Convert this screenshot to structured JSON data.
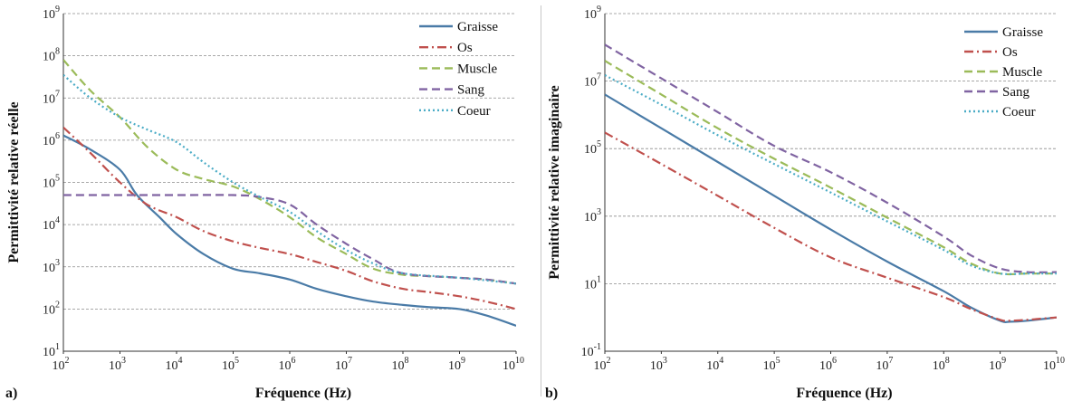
{
  "chart_data": [
    {
      "type": "line",
      "panel_label": "a)",
      "xlabel": "Fréquence (Hz)",
      "ylabel": "Permittivité relative réelle",
      "xscale": "log",
      "yscale": "log",
      "xlim": [
        100,
        10000000000
      ],
      "ylim": [
        10,
        1000000000
      ],
      "grid": "horizontal dashed",
      "legend_position": "top-right",
      "x_ticks": [
        {
          "base": "10",
          "exp": "2"
        },
        {
          "base": "10",
          "exp": "3"
        },
        {
          "base": "10",
          "exp": "4"
        },
        {
          "base": "10",
          "exp": "5"
        },
        {
          "base": "10",
          "exp": "6"
        },
        {
          "base": "10",
          "exp": "7"
        },
        {
          "base": "10",
          "exp": "8"
        },
        {
          "base": "10",
          "exp": "9"
        },
        {
          "base": "10",
          "exp": "10"
        }
      ],
      "y_ticks": [
        {
          "base": "10",
          "exp": "1"
        },
        {
          "base": "10",
          "exp": "2"
        },
        {
          "base": "10",
          "exp": "3"
        },
        {
          "base": "10",
          "exp": "4"
        },
        {
          "base": "10",
          "exp": "5"
        },
        {
          "base": "10",
          "exp": "6"
        },
        {
          "base": "10",
          "exp": "7"
        },
        {
          "base": "10",
          "exp": "8"
        },
        {
          "base": "10",
          "exp": "9"
        }
      ],
      "series": [
        {
          "name": "Graisse",
          "color": "#4a7ba7",
          "dash": "solid",
          "x": [
            100,
            300,
            1000,
            2000,
            5000,
            10000,
            30000,
            100000,
            300000,
            1000000,
            3000000,
            10000000,
            30000000,
            100000000,
            300000000,
            1000000000,
            3000000000,
            10000000000
          ],
          "y": [
            1300000,
            600000,
            200000,
            50000,
            15000,
            6000,
            2000,
            900,
            700,
            500,
            300,
            200,
            150,
            125,
            110,
            100,
            70,
            40
          ]
        },
        {
          "name": "Os",
          "color": "#c0504d",
          "dash": "dashdot",
          "x": [
            100,
            300,
            1000,
            3000,
            10000,
            30000,
            100000,
            300000,
            1000000,
            3000000,
            10000000,
            30000000,
            100000000,
            300000000,
            1000000000,
            3000000000,
            10000000000
          ],
          "y": [
            2000000,
            500000,
            100000,
            30000,
            15000,
            7000,
            4000,
            2800,
            2000,
            1300,
            800,
            450,
            300,
            250,
            200,
            150,
            100
          ]
        },
        {
          "name": "Muscle",
          "color": "#9bbb59",
          "dash": "dash",
          "x": [
            100,
            300,
            1000,
            3000,
            10000,
            30000,
            100000,
            300000,
            1000000,
            3000000,
            10000000,
            30000000,
            100000000,
            300000000,
            1000000000,
            3000000000,
            10000000000
          ],
          "y": [
            80000000,
            15000000,
            3500000,
            700000,
            200000,
            120000,
            80000,
            40000,
            15000,
            5000,
            2000,
            900,
            650,
            600,
            550,
            500,
            400
          ]
        },
        {
          "name": "Sang",
          "color": "#8064a2",
          "dash": "dash",
          "x": [
            100,
            1000,
            10000,
            100000,
            300000,
            1000000,
            3000000,
            10000000,
            30000000,
            100000000,
            1000000000,
            3000000000,
            10000000000
          ],
          "y": [
            50000,
            50000,
            50000,
            50000,
            45000,
            30000,
            10000,
            3500,
            1500,
            700,
            550,
            500,
            400
          ]
        },
        {
          "name": "Coeur",
          "color": "#4bacc6",
          "dash": "dot",
          "x": [
            100,
            300,
            1000,
            3000,
            10000,
            30000,
            100000,
            300000,
            1000000,
            3000000,
            10000000,
            30000000,
            100000000,
            1000000000,
            10000000000
          ],
          "y": [
            35000000,
            10000000,
            3500000,
            1800000,
            900000,
            300000,
            100000,
            45000,
            20000,
            7000,
            2500,
            1200,
            700,
            550,
            400
          ]
        }
      ]
    },
    {
      "type": "line",
      "panel_label": "b)",
      "xlabel": "Fréquence (Hz)",
      "ylabel": "Permittivité relative imaginaire",
      "xscale": "log",
      "yscale": "log",
      "xlim": [
        100,
        10000000000
      ],
      "ylim": [
        0.1,
        1000000000
      ],
      "grid": "horizontal dashed",
      "legend_position": "top-right",
      "x_ticks": [
        {
          "base": "10",
          "exp": "2"
        },
        {
          "base": "10",
          "exp": "3"
        },
        {
          "base": "10",
          "exp": "4"
        },
        {
          "base": "10",
          "exp": "5"
        },
        {
          "base": "10",
          "exp": "6"
        },
        {
          "base": "10",
          "exp": "7"
        },
        {
          "base": "10",
          "exp": "8"
        },
        {
          "base": "10",
          "exp": "9"
        },
        {
          "base": "10",
          "exp": "10"
        }
      ],
      "y_ticks": [
        {
          "base": "10",
          "exp": "-1"
        },
        {
          "base": "10",
          "exp": "1"
        },
        {
          "base": "10",
          "exp": "3"
        },
        {
          "base": "10",
          "exp": "5"
        },
        {
          "base": "10",
          "exp": "7"
        },
        {
          "base": "10",
          "exp": "9"
        }
      ],
      "series": [
        {
          "name": "Graisse",
          "color": "#4a7ba7",
          "dash": "solid",
          "x": [
            100,
            1000,
            10000,
            100000,
            1000000,
            10000000,
            100000000,
            300000000,
            1000000000,
            1500000000,
            3000000000,
            10000000000
          ],
          "y": [
            4000000,
            400000,
            40000,
            4000,
            400,
            45,
            6,
            2,
            0.8,
            0.75,
            0.8,
            1
          ]
        },
        {
          "name": "Os",
          "color": "#c0504d",
          "dash": "dashdot",
          "x": [
            100,
            1000,
            10000,
            100000,
            1000000,
            10000000,
            100000000,
            300000000,
            1000000000,
            1500000000,
            3000000000,
            10000000000
          ],
          "y": [
            300000,
            35000,
            4000,
            450,
            60,
            15,
            4,
            1.8,
            0.85,
            0.8,
            0.85,
            1
          ]
        },
        {
          "name": "Muscle",
          "color": "#9bbb59",
          "dash": "dash",
          "x": [
            100,
            1000,
            10000,
            100000,
            1000000,
            10000000,
            100000000,
            300000000,
            1000000000,
            3000000000,
            10000000000
          ],
          "y": [
            40000000,
            4000000,
            400000,
            50000,
            7000,
            900,
            120,
            40,
            20,
            20,
            20
          ]
        },
        {
          "name": "Sang",
          "color": "#8064a2",
          "dash": "dash",
          "x": [
            100,
            1000,
            10000,
            100000,
            1000000,
            10000000,
            100000000,
            300000000,
            1000000000,
            3000000000,
            10000000000
          ],
          "y": [
            120000000,
            12000000,
            1200000,
            120000,
            20000,
            2500,
            250,
            70,
            28,
            22,
            22
          ]
        },
        {
          "name": "Coeur",
          "color": "#4bacc6",
          "dash": "dot",
          "x": [
            100,
            1000,
            10000,
            100000,
            1000000,
            10000000,
            100000000,
            300000000,
            1000000000,
            3000000000,
            10000000000
          ],
          "y": [
            15000000,
            2000000,
            250000,
            35000,
            5000,
            700,
            100,
            35,
            20,
            20,
            20
          ]
        }
      ]
    }
  ]
}
